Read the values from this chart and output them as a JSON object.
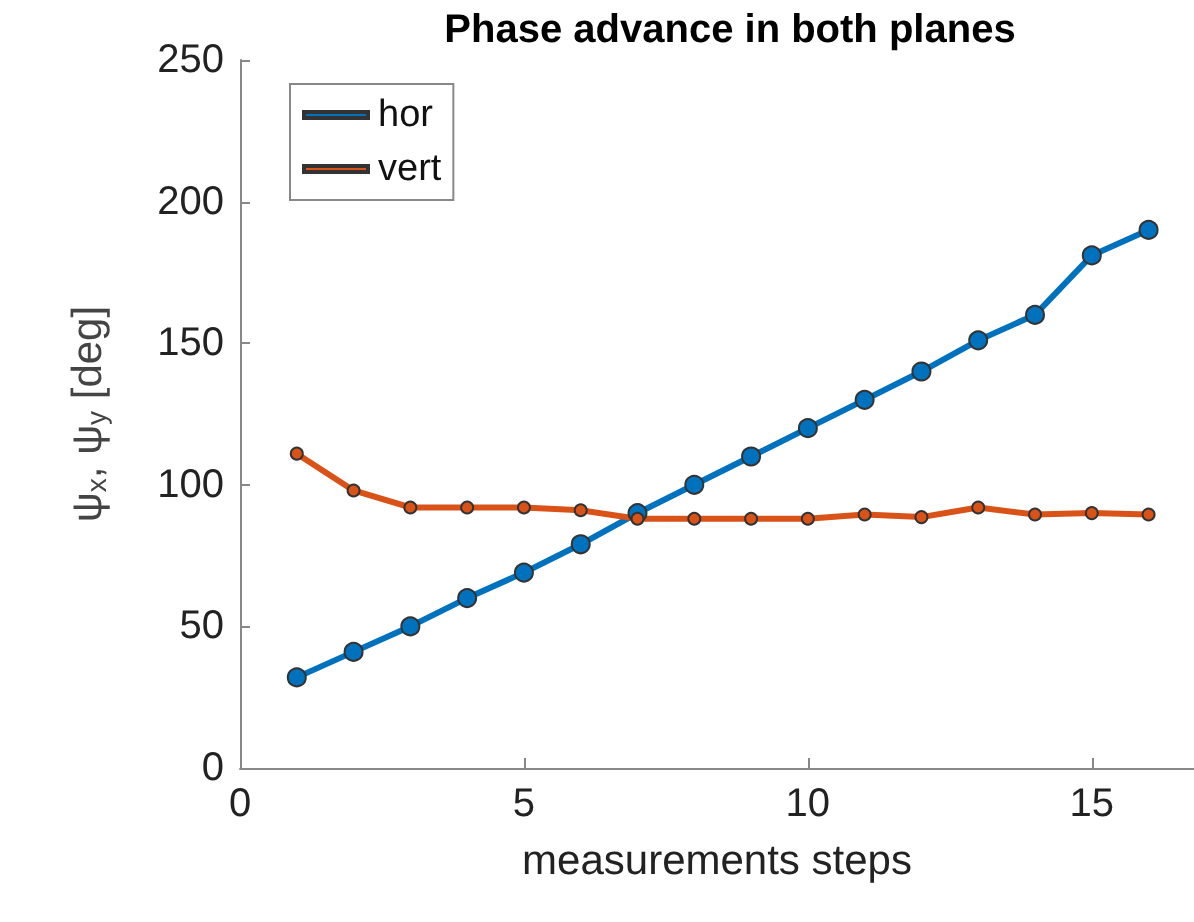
{
  "chart_data": {
    "type": "line",
    "title": "Phase advance in both planes",
    "xlabel": "measurements steps",
    "ylabel": "ψ$_{x}$, ψ$_{y}$ [deg]",
    "x": [
      1,
      2,
      3,
      4,
      5,
      6,
      7,
      8,
      9,
      10,
      11,
      12,
      13,
      14,
      15,
      16
    ],
    "series": [
      {
        "name": "hor",
        "color": "#0072bd",
        "values": [
          32,
          41,
          50,
          60,
          69,
          79,
          90,
          100,
          110,
          120,
          130,
          140,
          151,
          160,
          181,
          190
        ]
      },
      {
        "name": "vert",
        "color": "#d95319",
        "values": [
          111,
          98,
          92,
          92,
          92,
          91,
          88,
          88,
          88,
          88,
          89.5,
          88.6,
          92,
          89.5,
          90,
          89.5
        ]
      }
    ],
    "xlim": [
      0,
      16.8
    ],
    "xticks": [
      0,
      5,
      10,
      15
    ],
    "ylim": [
      0,
      250
    ],
    "yticks": [
      0,
      50,
      100,
      150,
      200,
      250
    ],
    "grid": false,
    "legend": "top left",
    "marker": "circle",
    "line_style": "solid"
  }
}
